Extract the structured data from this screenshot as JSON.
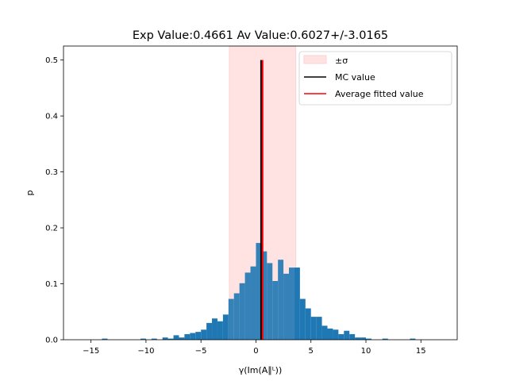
{
  "chart_data": {
    "type": "bar",
    "title": "Exp Value:0.4661 Av Value:0.6027+/-3.0165",
    "xlabel": "γ(Im(A∥ᴸ))",
    "ylabel": "p",
    "xlim": [
      -17.5,
      18.3
    ],
    "ylim": [
      0,
      0.525
    ],
    "xticks": [
      -15,
      -10,
      -5,
      0,
      5,
      10,
      15
    ],
    "yticks": [
      0.0,
      0.1,
      0.2,
      0.3,
      0.4,
      0.5
    ],
    "bin_width": 0.5,
    "bins": {
      "x": [
        -14.0,
        -10.5,
        -9.5,
        -8.5,
        -8.0,
        -7.5,
        -7.0,
        -6.5,
        -6.0,
        -5.5,
        -5.0,
        -4.5,
        -4.0,
        -3.5,
        -3.0,
        -2.5,
        -2.0,
        -1.5,
        -1.0,
        -0.5,
        0.0,
        0.5,
        1.0,
        1.5,
        2.0,
        2.5,
        3.0,
        3.5,
        4.0,
        4.5,
        5.0,
        5.5,
        6.0,
        6.5,
        7.0,
        7.5,
        8.0,
        8.5,
        9.0,
        9.5,
        10.0,
        11.5,
        14.0
      ],
      "values": [
        0.002,
        0.002,
        0.002,
        0.004,
        0.002,
        0.008,
        0.004,
        0.01,
        0.012,
        0.014,
        0.018,
        0.03,
        0.038,
        0.033,
        0.045,
        0.073,
        0.083,
        0.101,
        0.12,
        0.131,
        0.173,
        0.158,
        0.137,
        0.105,
        0.143,
        0.118,
        0.129,
        0.129,
        0.073,
        0.056,
        0.041,
        0.041,
        0.025,
        0.02,
        0.018,
        0.01,
        0.016,
        0.01,
        0.004,
        0.004,
        0.002,
        0.002,
        0.002
      ]
    },
    "sigma_band": [
      -2.414,
      3.619
    ],
    "mc_value": 0.4661,
    "average_fitted_value": 0.6027,
    "vline_top": 0.5,
    "legend": {
      "position": "upper right",
      "entries": [
        "±σ",
        "MC value",
        "Average fitted value"
      ]
    },
    "colors": {
      "bar": "#1f77b4",
      "band_fill": "#ffe3e3",
      "band_edge": "#ffd2d2",
      "mc_line": "#000000",
      "avg_line": "#ff0000"
    }
  }
}
